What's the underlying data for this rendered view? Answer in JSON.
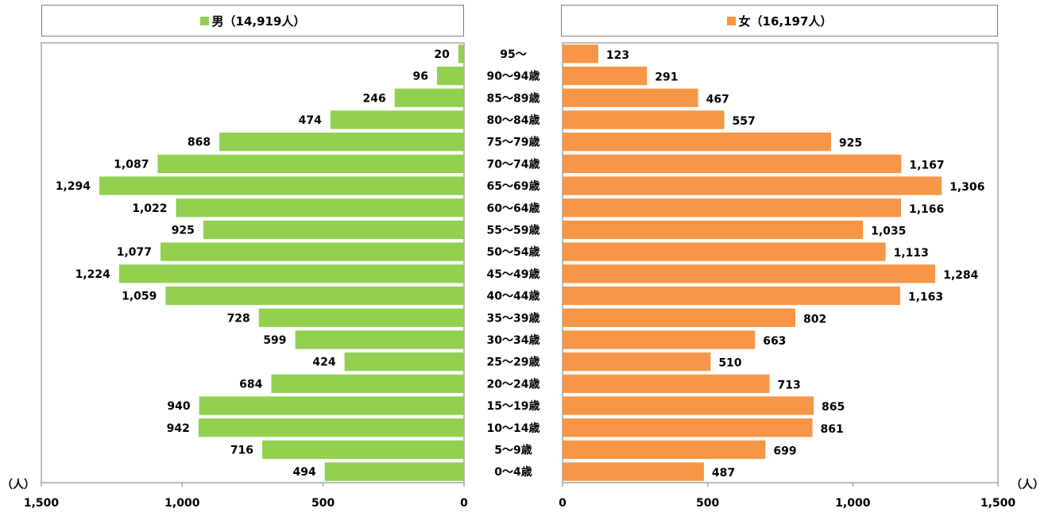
{
  "chart_data": {
    "type": "bar",
    "orientation": "horizontal-population-pyramid",
    "categories": [
      "95〜",
      "90〜94歳",
      "85〜89歳",
      "80〜84歳",
      "75〜79歳",
      "70〜74歳",
      "65〜69歳",
      "60〜64歳",
      "55〜59歳",
      "50〜54歳",
      "45〜49歳",
      "40〜44歳",
      "35〜39歳",
      "30〜34歳",
      "25〜29歳",
      "20〜24歳",
      "15〜19歳",
      "10〜14歳",
      "5〜9歳",
      "0〜4歳"
    ],
    "series": [
      {
        "name": "男（14,919人）",
        "color": "#92d050",
        "values": [
          20,
          96,
          246,
          474,
          868,
          1087,
          1294,
          1022,
          925,
          1077,
          1224,
          1059,
          728,
          599,
          424,
          684,
          940,
          942,
          716,
          494
        ],
        "labels": [
          "20",
          "96",
          "246",
          "474",
          "868",
          "1,087",
          "1,294",
          "1,022",
          "925",
          "1,077",
          "1,224",
          "1,059",
          "728",
          "599",
          "424",
          "684",
          "940",
          "942",
          "716",
          "494"
        ]
      },
      {
        "name": "女（16,197人）",
        "color": "#f79646",
        "values": [
          123,
          291,
          467,
          557,
          925,
          1167,
          1306,
          1166,
          1035,
          1113,
          1284,
          1163,
          802,
          663,
          510,
          713,
          865,
          861,
          699,
          487
        ],
        "labels": [
          "123",
          "291",
          "467",
          "557",
          "925",
          "1,167",
          "1,306",
          "1,166",
          "1,035",
          "1,113",
          "1,284",
          "1,163",
          "802",
          "663",
          "510",
          "713",
          "865",
          "861",
          "699",
          "487"
        ]
      }
    ],
    "xlim": [
      0,
      1500
    ],
    "ticks": [
      0,
      500,
      1000,
      1500
    ],
    "tick_labels_left": [
      "1,500",
      "1,000",
      "500",
      "0"
    ],
    "tick_labels_right": [
      "0",
      "500",
      "1,000",
      "1,500"
    ],
    "unit_label_left": "（人）",
    "unit_label_right": "（人）",
    "grid": false
  }
}
